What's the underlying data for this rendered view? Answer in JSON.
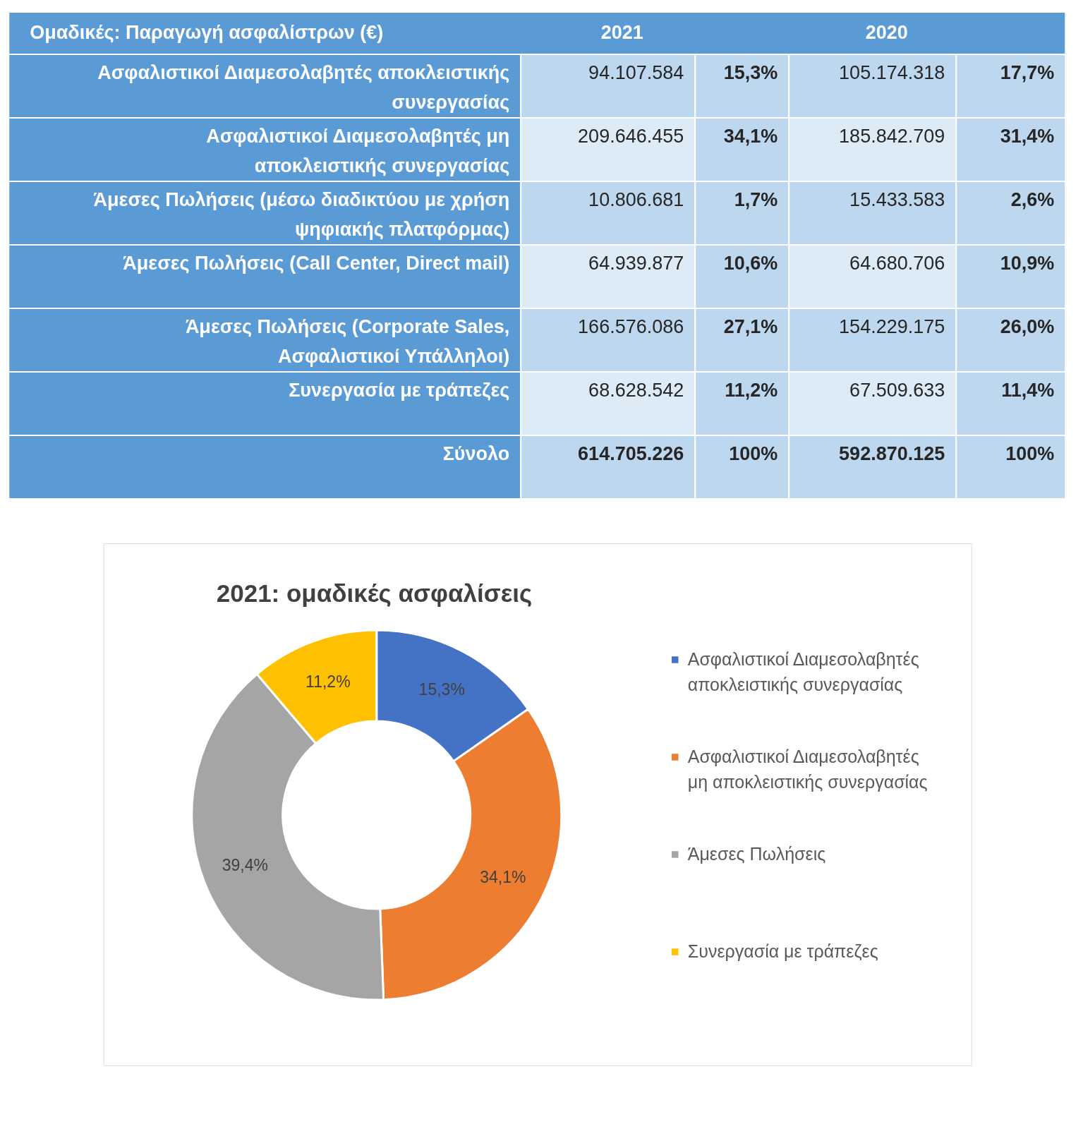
{
  "chart_data": [
    {
      "type": "other",
      "categories": [
        "Ομαδικές:   Παραγωγή ασφαλίστρων   (€)",
        "2021",
        "2020"
      ],
      "y_categories": [
        "Ασφαλιστικοί Διαμεσολαβητές αποκλειστικής\nσυνεργασίας",
        "Ασφαλιστικοί Διαμεσολαβητές  μη\nαποκλειστικής συνεργασίας",
        "Άμεσες Πωλήσεις  (μέσω διαδικτύου με χρήση\nψηφιακής πλατφόρμας)",
        "Άμεσες Πωλήσεις  (Call Center,  Direct mail)",
        "Άμεσες Πωλήσεις  (Corporate Sales,\nΑσφαλιστικοί Υπάλληλοι)",
        "Συνεργασία με τράπεζες",
        "Σύνολο"
      ],
      "cell_labels": [
        [
          "94.107.584",
          "15,3%",
          "105.174.318",
          "17,7%"
        ],
        [
          "209.646.455",
          "34,1%",
          "185.842.709",
          "31,4%"
        ],
        [
          "10.806.681",
          "1,7%",
          "15.433.583",
          "2,6%"
        ],
        [
          "64.939.877",
          "10,6%",
          "64.680.706",
          "10,9%"
        ],
        [
          "166.576.086",
          "27,1%",
          "154.229.175",
          "26,0%"
        ],
        [
          "68.628.542",
          "11,2%",
          "67.509.633",
          "11,4%"
        ],
        [
          "614.705.226",
          "100%",
          "592.870.125",
          "100%"
        ]
      ]
    },
    {
      "type": "donut",
      "title": "2021: ομαδικές ασφαλίσεις",
      "categories": [
        "Ασφαλιστικοί Διαμεσολαβητές\nαποκλειστικής συνεργασίας",
        "Ασφαλιστικοί Διαμεσολαβητές\nμη  αποκλειστικής συνεργασίας",
        "Άμεσες Πωλήσεις",
        "Συνεργασία με τράπεζες"
      ],
      "values": [
        15.3,
        34.1,
        39.4,
        11.2
      ],
      "colors": [
        "#4472c4",
        "#ed7d31",
        "#a5a5a5",
        "#ffc000"
      ],
      "value_labels": [
        "15,3%",
        "34,1%",
        "39,4%",
        "11,2%"
      ],
      "legend": "right"
    }
  ]
}
